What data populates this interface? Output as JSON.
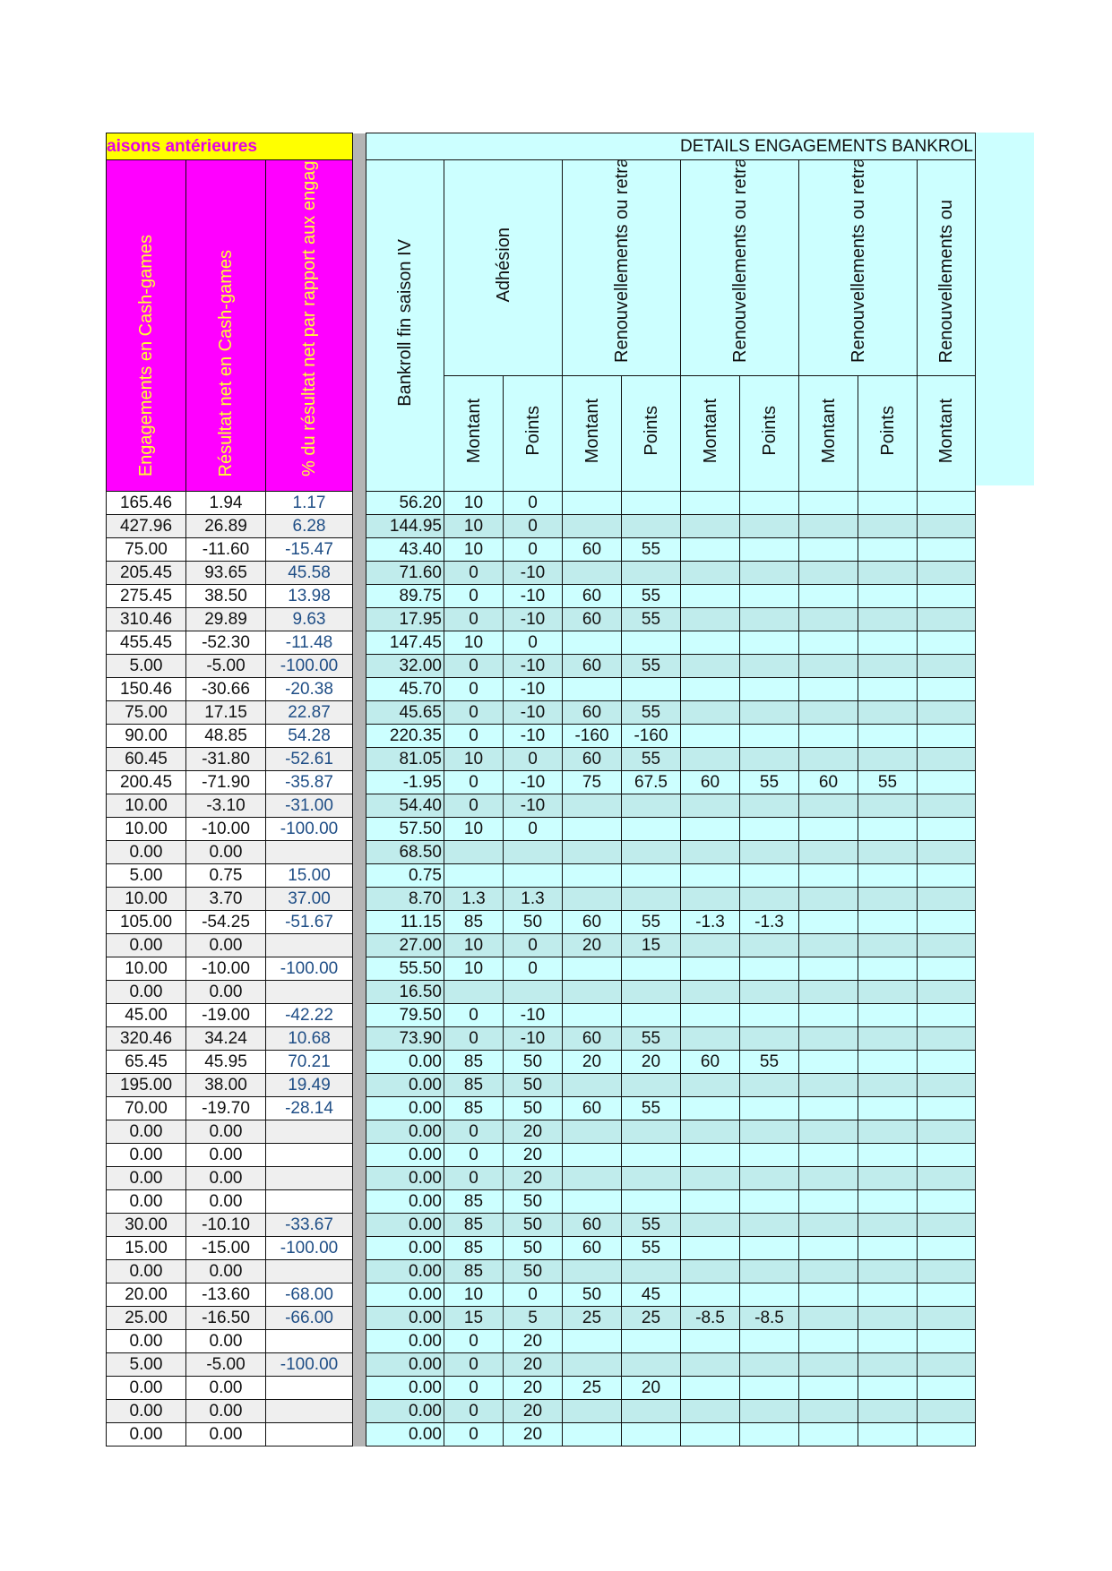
{
  "header": {
    "left_title": "aisons antérieures",
    "right_title": "DETAILS ENGAGEMENTS BANKROL",
    "col_engagements": "Engagements en Cash-games",
    "col_resultat": "Résultat net en Cash-games",
    "col_pct": "% du résultat net par rapport aux engagements en Cash-games",
    "col_bankroll": "Bankroll fin saison IV",
    "group_adhesion": "Adhésion",
    "group_renouv": "Renouvellements ou retraits",
    "group_renouv_clipped": "Renouvellements ou",
    "sub_montant": "Montant",
    "sub_points": "Points"
  },
  "colors": {
    "magenta": "#ff00ff",
    "yellow": "#ffff00",
    "cyan": "#ccffff",
    "cyan_alt": "#c0ecec",
    "pct_text": "#1f4e86"
  },
  "rows": [
    [
      "165.46",
      "1.94",
      "1.17",
      "56.20",
      "10",
      "0",
      "",
      "",
      "",
      "",
      "",
      "",
      ""
    ],
    [
      "427.96",
      "26.89",
      "6.28",
      "144.95",
      "10",
      "0",
      "",
      "",
      "",
      "",
      "",
      "",
      ""
    ],
    [
      "75.00",
      "-11.60",
      "-15.47",
      "43.40",
      "10",
      "0",
      "60",
      "55",
      "",
      "",
      "",
      "",
      ""
    ],
    [
      "205.45",
      "93.65",
      "45.58",
      "71.60",
      "0",
      "-10",
      "",
      "",
      "",
      "",
      "",
      "",
      ""
    ],
    [
      "275.45",
      "38.50",
      "13.98",
      "89.75",
      "0",
      "-10",
      "60",
      "55",
      "",
      "",
      "",
      "",
      ""
    ],
    [
      "310.46",
      "29.89",
      "9.63",
      "17.95",
      "0",
      "-10",
      "60",
      "55",
      "",
      "",
      "",
      "",
      ""
    ],
    [
      "455.45",
      "-52.30",
      "-11.48",
      "147.45",
      "10",
      "0",
      "",
      "",
      "",
      "",
      "",
      "",
      ""
    ],
    [
      "5.00",
      "-5.00",
      "-100.00",
      "32.00",
      "0",
      "-10",
      "60",
      "55",
      "",
      "",
      "",
      "",
      ""
    ],
    [
      "150.46",
      "-30.66",
      "-20.38",
      "45.70",
      "0",
      "-10",
      "",
      "",
      "",
      "",
      "",
      "",
      ""
    ],
    [
      "75.00",
      "17.15",
      "22.87",
      "45.65",
      "0",
      "-10",
      "60",
      "55",
      "",
      "",
      "",
      "",
      ""
    ],
    [
      "90.00",
      "48.85",
      "54.28",
      "220.35",
      "0",
      "-10",
      "-160",
      "-160",
      "",
      "",
      "",
      "",
      ""
    ],
    [
      "60.45",
      "-31.80",
      "-52.61",
      "81.05",
      "10",
      "0",
      "60",
      "55",
      "",
      "",
      "",
      "",
      ""
    ],
    [
      "200.45",
      "-71.90",
      "-35.87",
      "-1.95",
      "0",
      "-10",
      "75",
      "67.5",
      "60",
      "55",
      "60",
      "55",
      ""
    ],
    [
      "10.00",
      "-3.10",
      "-31.00",
      "54.40",
      "0",
      "-10",
      "",
      "",
      "",
      "",
      "",
      "",
      ""
    ],
    [
      "10.00",
      "-10.00",
      "-100.00",
      "57.50",
      "10",
      "0",
      "",
      "",
      "",
      "",
      "",
      "",
      ""
    ],
    [
      "0.00",
      "0.00",
      "",
      "68.50",
      "",
      "",
      "",
      "",
      "",
      "",
      "",
      "",
      ""
    ],
    [
      "5.00",
      "0.75",
      "15.00",
      "0.75",
      "",
      "",
      "",
      "",
      "",
      "",
      "",
      "",
      ""
    ],
    [
      "10.00",
      "3.70",
      "37.00",
      "8.70",
      "1.3",
      "1.3",
      "",
      "",
      "",
      "",
      "",
      "",
      ""
    ],
    [
      "105.00",
      "-54.25",
      "-51.67",
      "11.15",
      "85",
      "50",
      "60",
      "55",
      "-1.3",
      "-1.3",
      "",
      "",
      ""
    ],
    [
      "0.00",
      "0.00",
      "",
      "27.00",
      "10",
      "0",
      "20",
      "15",
      "",
      "",
      "",
      "",
      ""
    ],
    [
      "10.00",
      "-10.00",
      "-100.00",
      "55.50",
      "10",
      "0",
      "",
      "",
      "",
      "",
      "",
      "",
      ""
    ],
    [
      "0.00",
      "0.00",
      "",
      "16.50",
      "",
      "",
      "",
      "",
      "",
      "",
      "",
      "",
      ""
    ],
    [
      "45.00",
      "-19.00",
      "-42.22",
      "79.50",
      "0",
      "-10",
      "",
      "",
      "",
      "",
      "",
      "",
      ""
    ],
    [
      "320.46",
      "34.24",
      "10.68",
      "73.90",
      "0",
      "-10",
      "60",
      "55",
      "",
      "",
      "",
      "",
      ""
    ],
    [
      "65.45",
      "45.95",
      "70.21",
      "0.00",
      "85",
      "50",
      "20",
      "20",
      "60",
      "55",
      "",
      "",
      ""
    ],
    [
      "195.00",
      "38.00",
      "19.49",
      "0.00",
      "85",
      "50",
      "",
      "",
      "",
      "",
      "",
      "",
      ""
    ],
    [
      "70.00",
      "-19.70",
      "-28.14",
      "0.00",
      "85",
      "50",
      "60",
      "55",
      "",
      "",
      "",
      "",
      ""
    ],
    [
      "0.00",
      "0.00",
      "",
      "0.00",
      "0",
      "20",
      "",
      "",
      "",
      "",
      "",
      "",
      ""
    ],
    [
      "0.00",
      "0.00",
      "",
      "0.00",
      "0",
      "20",
      "",
      "",
      "",
      "",
      "",
      "",
      ""
    ],
    [
      "0.00",
      "0.00",
      "",
      "0.00",
      "0",
      "20",
      "",
      "",
      "",
      "",
      "",
      "",
      ""
    ],
    [
      "0.00",
      "0.00",
      "",
      "0.00",
      "85",
      "50",
      "",
      "",
      "",
      "",
      "",
      "",
      ""
    ],
    [
      "30.00",
      "-10.10",
      "-33.67",
      "0.00",
      "85",
      "50",
      "60",
      "55",
      "",
      "",
      "",
      "",
      ""
    ],
    [
      "15.00",
      "-15.00",
      "-100.00",
      "0.00",
      "85",
      "50",
      "60",
      "55",
      "",
      "",
      "",
      "",
      ""
    ],
    [
      "0.00",
      "0.00",
      "",
      "0.00",
      "85",
      "50",
      "",
      "",
      "",
      "",
      "",
      "",
      ""
    ],
    [
      "20.00",
      "-13.60",
      "-68.00",
      "0.00",
      "10",
      "0",
      "50",
      "45",
      "",
      "",
      "",
      "",
      ""
    ],
    [
      "25.00",
      "-16.50",
      "-66.00",
      "0.00",
      "15",
      "5",
      "25",
      "25",
      "-8.5",
      "-8.5",
      "",
      "",
      ""
    ],
    [
      "0.00",
      "0.00",
      "",
      "0.00",
      "0",
      "20",
      "",
      "",
      "",
      "",
      "",
      "",
      ""
    ],
    [
      "5.00",
      "-5.00",
      "-100.00",
      "0.00",
      "0",
      "20",
      "",
      "",
      "",
      "",
      "",
      "",
      ""
    ],
    [
      "0.00",
      "0.00",
      "",
      "0.00",
      "0",
      "20",
      "25",
      "20",
      "",
      "",
      "",
      "",
      ""
    ],
    [
      "0.00",
      "0.00",
      "",
      "0.00",
      "0",
      "20",
      "",
      "",
      "",
      "",
      "",
      "",
      ""
    ],
    [
      "0.00",
      "0.00",
      "",
      "0.00",
      "0",
      "20",
      "",
      "",
      "",
      "",
      "",
      "",
      ""
    ]
  ]
}
